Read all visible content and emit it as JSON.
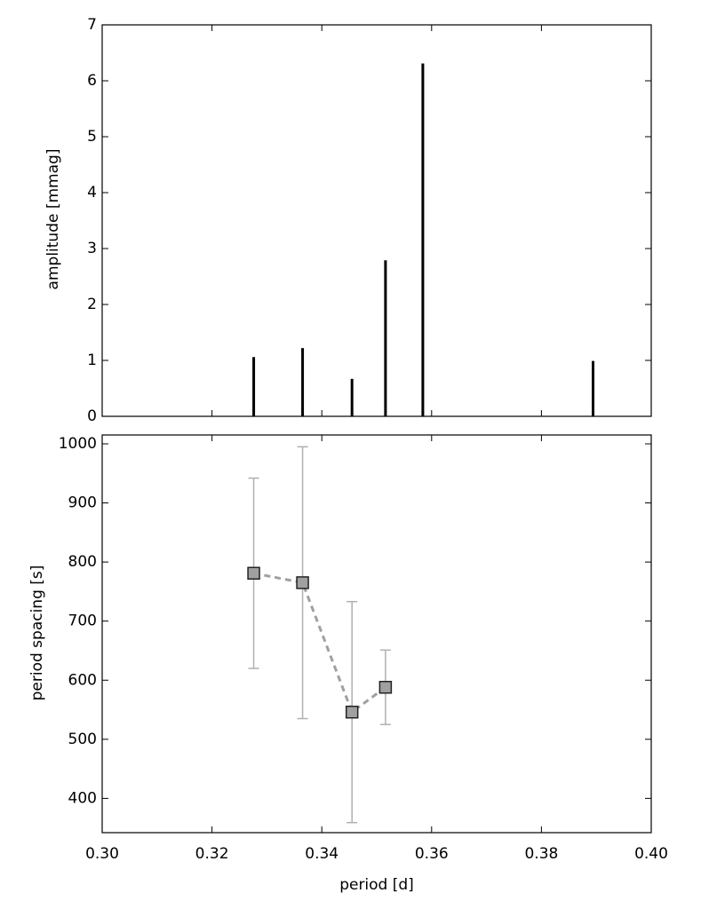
{
  "chart_data": [
    {
      "type": "stem",
      "y_label": "amplitude [mmag]",
      "x": [
        0.3276,
        0.3365,
        0.3455,
        0.3516,
        0.3584,
        0.3894
      ],
      "values": [
        1.06,
        1.22,
        0.67,
        2.79,
        6.31,
        0.99
      ],
      "color": "#000000",
      "xlim": [
        0.3,
        0.4
      ],
      "ylim": [
        0,
        7
      ],
      "yticks": [
        0,
        1,
        2,
        3,
        4,
        5,
        6,
        7
      ]
    },
    {
      "type": "errorbar",
      "x_label": "period [d]",
      "y_label": "period spacing [s]",
      "x": [
        0.3276,
        0.3365,
        0.3455,
        0.3516
      ],
      "values": [
        781,
        765,
        546,
        588
      ],
      "errors": [
        161,
        230,
        187,
        63
      ],
      "color": "#a0a0a0",
      "error_color": "#b0b0b0",
      "xlim": [
        0.3,
        0.4
      ],
      "ylim": [
        342,
        1015
      ],
      "xticks": [
        {
          "value": 0.3,
          "label": "0.30"
        },
        0.32,
        0.34,
        0.36,
        0.38,
        {
          "value": 0.4,
          "label": "0.40"
        }
      ],
      "yticks": [
        400,
        500,
        600,
        700,
        800,
        900,
        1000
      ]
    }
  ]
}
